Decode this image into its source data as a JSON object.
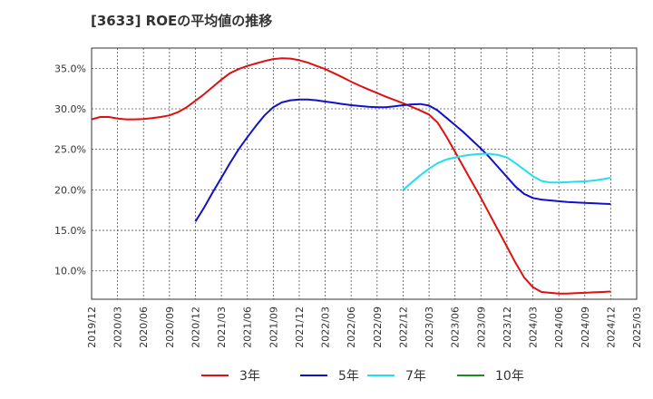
{
  "chart_data": {
    "type": "line",
    "title": "[3633]  ROEの平均値の推移",
    "xlabel": "",
    "ylabel": "",
    "ylim": [
      6.5,
      37.5
    ],
    "yticks": [
      10,
      15,
      20,
      25,
      30,
      35
    ],
    "ytick_labels": [
      "10.0%",
      "15.0%",
      "20.0%",
      "25.0%",
      "30.0%",
      "35.0%"
    ],
    "xticks": [
      2019.917,
      2020.167,
      2020.417,
      2020.667,
      2020.917,
      2021.167,
      2021.417,
      2021.667,
      2021.917,
      2022.167,
      2022.417,
      2022.667,
      2022.917,
      2023.167,
      2023.417,
      2023.667,
      2023.917,
      2024.167,
      2024.417,
      2024.667,
      2024.917,
      2025.167
    ],
    "xtick_labels": [
      "2019/12",
      "2020/03",
      "2020/06",
      "2020/09",
      "2020/12",
      "2021/03",
      "2021/06",
      "2021/09",
      "2021/12",
      "2022/03",
      "2022/06",
      "2022/09",
      "2022/12",
      "2023/03",
      "2023/06",
      "2023/09",
      "2023/12",
      "2024/03",
      "2024/06",
      "2024/09",
      "2024/12",
      "2025/03"
    ],
    "xlim": [
      2019.917,
      2025.167
    ],
    "series": [
      {
        "name": "3年",
        "color": "#dd1111",
        "points": [
          [
            2019.917,
            28.7
          ],
          [
            2020.0,
            29.0
          ],
          [
            2020.083,
            29.0
          ],
          [
            2020.167,
            28.8
          ],
          [
            2020.25,
            28.7
          ],
          [
            2020.333,
            28.7
          ],
          [
            2020.417,
            28.75
          ],
          [
            2020.5,
            28.85
          ],
          [
            2020.583,
            29.0
          ],
          [
            2020.667,
            29.2
          ],
          [
            2020.75,
            29.6
          ],
          [
            2020.833,
            30.2
          ],
          [
            2020.917,
            31.0
          ],
          [
            2021.0,
            31.8
          ],
          [
            2021.083,
            32.7
          ],
          [
            2021.167,
            33.6
          ],
          [
            2021.25,
            34.4
          ],
          [
            2021.333,
            34.9
          ],
          [
            2021.417,
            35.3
          ],
          [
            2021.5,
            35.6
          ],
          [
            2021.583,
            35.9
          ],
          [
            2021.667,
            36.15
          ],
          [
            2021.75,
            36.25
          ],
          [
            2021.833,
            36.2
          ],
          [
            2021.917,
            36.0
          ],
          [
            2022.0,
            35.7
          ],
          [
            2022.083,
            35.3
          ],
          [
            2022.167,
            34.9
          ],
          [
            2022.25,
            34.4
          ],
          [
            2022.333,
            33.9
          ],
          [
            2022.417,
            33.35
          ],
          [
            2022.5,
            32.85
          ],
          [
            2022.583,
            32.4
          ],
          [
            2022.667,
            31.95
          ],
          [
            2022.75,
            31.5
          ],
          [
            2022.833,
            31.1
          ],
          [
            2022.917,
            30.7
          ],
          [
            2023.0,
            30.25
          ],
          [
            2023.083,
            29.8
          ],
          [
            2023.167,
            29.3
          ],
          [
            2023.25,
            28.3
          ],
          [
            2023.333,
            26.6
          ],
          [
            2023.417,
            24.7
          ],
          [
            2023.5,
            22.8
          ],
          [
            2023.583,
            20.9
          ],
          [
            2023.667,
            19.0
          ],
          [
            2023.75,
            17.0
          ],
          [
            2023.833,
            15.0
          ],
          [
            2023.917,
            13.0
          ],
          [
            2024.0,
            11.0
          ],
          [
            2024.083,
            9.2
          ],
          [
            2024.167,
            8.0
          ],
          [
            2024.25,
            7.4
          ],
          [
            2024.333,
            7.3
          ],
          [
            2024.417,
            7.2
          ],
          [
            2024.5,
            7.2
          ],
          [
            2024.583,
            7.25
          ],
          [
            2024.667,
            7.3
          ],
          [
            2024.75,
            7.35
          ],
          [
            2024.833,
            7.4
          ],
          [
            2024.917,
            7.45
          ]
        ]
      },
      {
        "name": "5年",
        "color": "#1111cc",
        "points": [
          [
            2020.917,
            16.1
          ],
          [
            2021.0,
            17.8
          ],
          [
            2021.083,
            19.7
          ],
          [
            2021.167,
            21.5
          ],
          [
            2021.25,
            23.3
          ],
          [
            2021.333,
            25.0
          ],
          [
            2021.417,
            26.5
          ],
          [
            2021.5,
            27.9
          ],
          [
            2021.583,
            29.2
          ],
          [
            2021.667,
            30.2
          ],
          [
            2021.75,
            30.8
          ],
          [
            2021.833,
            31.05
          ],
          [
            2021.917,
            31.15
          ],
          [
            2022.0,
            31.15
          ],
          [
            2022.083,
            31.05
          ],
          [
            2022.167,
            30.9
          ],
          [
            2022.25,
            30.75
          ],
          [
            2022.333,
            30.6
          ],
          [
            2022.417,
            30.45
          ],
          [
            2022.5,
            30.35
          ],
          [
            2022.583,
            30.25
          ],
          [
            2022.667,
            30.2
          ],
          [
            2022.75,
            30.2
          ],
          [
            2022.833,
            30.3
          ],
          [
            2022.917,
            30.45
          ],
          [
            2023.0,
            30.55
          ],
          [
            2023.083,
            30.6
          ],
          [
            2023.167,
            30.4
          ],
          [
            2023.25,
            29.8
          ],
          [
            2023.333,
            28.9
          ],
          [
            2023.417,
            28.0
          ],
          [
            2023.5,
            27.1
          ],
          [
            2023.583,
            26.1
          ],
          [
            2023.667,
            25.1
          ],
          [
            2023.75,
            24.0
          ],
          [
            2023.833,
            22.8
          ],
          [
            2023.917,
            21.6
          ],
          [
            2024.0,
            20.4
          ],
          [
            2024.083,
            19.5
          ],
          [
            2024.167,
            19.0
          ],
          [
            2024.25,
            18.8
          ],
          [
            2024.333,
            18.7
          ],
          [
            2024.417,
            18.6
          ],
          [
            2024.5,
            18.5
          ],
          [
            2024.583,
            18.45
          ],
          [
            2024.667,
            18.4
          ],
          [
            2024.75,
            18.35
          ],
          [
            2024.833,
            18.3
          ],
          [
            2024.917,
            18.25
          ]
        ]
      },
      {
        "name": "7年",
        "color": "#22ddee",
        "points": [
          [
            2022.917,
            20.0
          ],
          [
            2023.0,
            20.9
          ],
          [
            2023.083,
            21.8
          ],
          [
            2023.167,
            22.6
          ],
          [
            2023.25,
            23.3
          ],
          [
            2023.333,
            23.75
          ],
          [
            2023.417,
            24.0
          ],
          [
            2023.5,
            24.2
          ],
          [
            2023.583,
            24.35
          ],
          [
            2023.667,
            24.45
          ],
          [
            2023.75,
            24.45
          ],
          [
            2023.833,
            24.3
          ],
          [
            2023.917,
            24.0
          ],
          [
            2024.0,
            23.3
          ],
          [
            2024.083,
            22.5
          ],
          [
            2024.167,
            21.7
          ],
          [
            2024.25,
            21.1
          ],
          [
            2024.333,
            20.9
          ],
          [
            2024.417,
            20.9
          ],
          [
            2024.5,
            20.95
          ],
          [
            2024.583,
            21.0
          ],
          [
            2024.667,
            21.05
          ],
          [
            2024.75,
            21.15
          ],
          [
            2024.833,
            21.3
          ],
          [
            2024.917,
            21.5
          ]
        ]
      },
      {
        "name": "10年",
        "color": "#228822",
        "points": []
      }
    ]
  }
}
